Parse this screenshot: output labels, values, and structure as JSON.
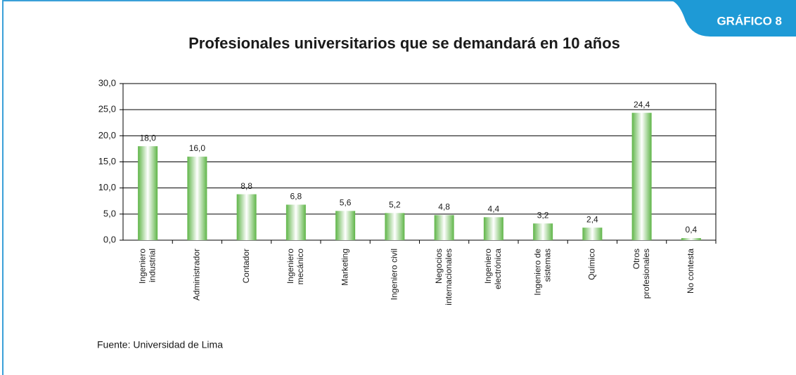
{
  "chart_data": {
    "type": "bar",
    "badge": "GRÁFICO 8",
    "title": "Profesionales universitarios que se demandará en 10 años",
    "categories": [
      [
        "Ingeniero",
        "industrial"
      ],
      [
        "Administrador"
      ],
      [
        "Contador"
      ],
      [
        "Ingeniero",
        "mecánico"
      ],
      [
        "Marketing"
      ],
      [
        "Ingeniero civil"
      ],
      [
        "Negocios",
        "internacionales"
      ],
      [
        "Ingeniero",
        "electrónica"
      ],
      [
        "Ingeniero de",
        "sistemas"
      ],
      [
        "Químico"
      ],
      [
        "Otros",
        "profesionales"
      ],
      [
        "No contesta"
      ]
    ],
    "values": [
      18.0,
      16.0,
      8.8,
      6.8,
      5.6,
      5.2,
      4.8,
      4.4,
      3.2,
      2.4,
      24.4,
      0.4
    ],
    "value_labels": [
      "18,0",
      "16,0",
      "8,8",
      "6,8",
      "5,6",
      "5,2",
      "4,8",
      "4,4",
      "3,2",
      "2,4",
      "24,4",
      "0,4"
    ],
    "color": "#5fb548",
    "ylim": [
      0,
      30
    ],
    "yticks": [
      {
        "value": 0,
        "label": "0,0"
      },
      {
        "value": 5,
        "label": "5,0"
      },
      {
        "value": 10,
        "label": "10,0"
      },
      {
        "value": 15,
        "label": "15,0"
      },
      {
        "value": 20,
        "label": "20,0"
      },
      {
        "value": 25,
        "label": "25,0"
      },
      {
        "value": 30,
        "label": "30,0"
      }
    ],
    "grid": true,
    "source": "Fuente: Universidad de Lima"
  }
}
